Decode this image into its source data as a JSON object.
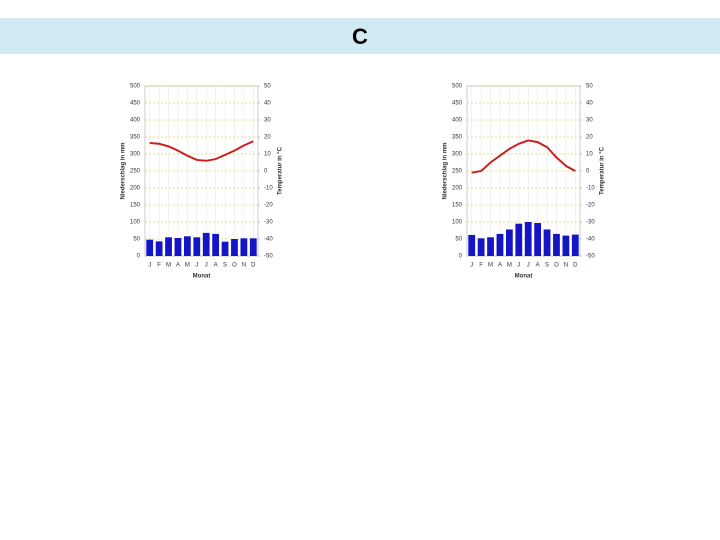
{
  "header": {
    "title": "C"
  },
  "chart_data": [
    {
      "type": "bar",
      "categories": [
        "J",
        "F",
        "M",
        "A",
        "M",
        "J",
        "J",
        "A",
        "S",
        "O",
        "N",
        "D"
      ],
      "x_label": "Monat",
      "y_label": "Niederschlag in mm",
      "y2_label": "Temperatur in °C",
      "ylim": [
        0,
        500
      ],
      "yticks": [
        0,
        50,
        100,
        150,
        200,
        250,
        300,
        350,
        400,
        450,
        500
      ],
      "y2lim": [
        -50,
        50
      ],
      "y2ticks": [
        -50,
        -40,
        -30,
        -20,
        -10,
        0,
        10,
        20,
        30,
        40,
        50
      ],
      "grid": true,
      "series": [
        {
          "type": "bar",
          "color": "#1515c8",
          "values": [
            48,
            43,
            55,
            53,
            58,
            55,
            68,
            65,
            42,
            50,
            52,
            52
          ]
        },
        {
          "type": "line",
          "axis": "y2",
          "color": "#cc2020",
          "values": [
            16.5,
            16,
            14.5,
            12,
            9,
            6.5,
            6,
            7,
            9.5,
            12,
            15,
            17.5
          ]
        }
      ]
    },
    {
      "type": "bar",
      "categories": [
        "J",
        "F",
        "M",
        "A",
        "M",
        "J",
        "J",
        "A",
        "S",
        "O",
        "N",
        "D"
      ],
      "x_label": "Monat",
      "y_label": "Niederschlag in mm",
      "y2_label": "Temperatur in °C",
      "ylim": [
        0,
        500
      ],
      "yticks": [
        0,
        50,
        100,
        150,
        200,
        250,
        300,
        350,
        400,
        450,
        500
      ],
      "y2lim": [
        -50,
        50
      ],
      "y2ticks": [
        -50,
        -40,
        -30,
        -20,
        -10,
        0,
        10,
        20,
        30,
        40,
        50
      ],
      "grid": true,
      "series": [
        {
          "type": "bar",
          "color": "#1515c8",
          "values": [
            62,
            52,
            55,
            65,
            78,
            95,
            100,
            97,
            78,
            65,
            60,
            63
          ]
        },
        {
          "type": "line",
          "axis": "y2",
          "color": "#cc2020",
          "values": [
            -1,
            0,
            5,
            9,
            13,
            16,
            18,
            17,
            14,
            8,
            3,
            0
          ]
        }
      ]
    }
  ]
}
